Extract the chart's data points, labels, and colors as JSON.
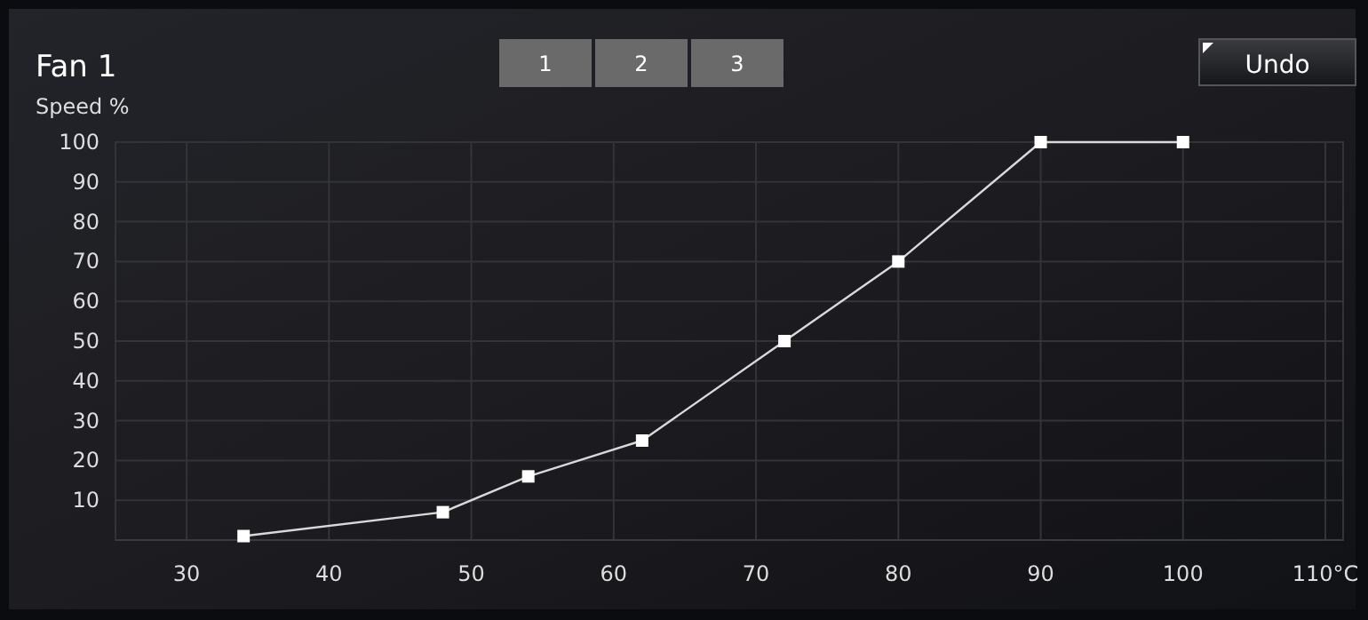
{
  "chart_data": {
    "type": "line",
    "title": "Fan 1",
    "ylabel": "Speed %",
    "x": [
      34,
      48,
      54,
      62,
      72,
      80,
      90,
      100
    ],
    "series": [
      {
        "color": "#d9d9d9",
        "values": [
          1,
          7,
          16,
          25,
          50,
          70,
          100,
          100
        ]
      }
    ],
    "xlim": [
      25,
      110
    ],
    "xticks": [
      30,
      40,
      50,
      60,
      70,
      80,
      90,
      100,
      {
        "value": 110,
        "label": "110°C"
      }
    ],
    "ylim": [
      0,
      100
    ],
    "yticks": [
      10,
      20,
      30,
      40,
      50,
      60,
      70,
      80,
      90,
      100
    ],
    "grid": true,
    "marker": "square",
    "line_style": "solid",
    "annotations": [
      "1",
      "2",
      "3",
      "Undo"
    ]
  }
}
